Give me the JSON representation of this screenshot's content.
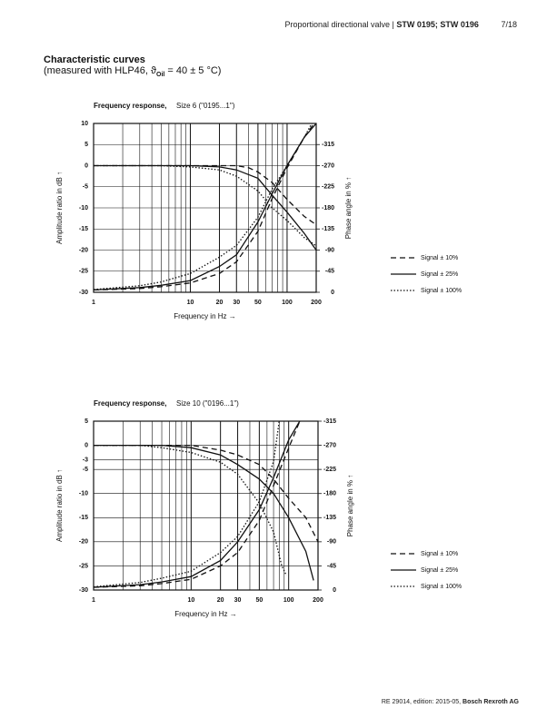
{
  "header": {
    "title": "Proportional directional valve |",
    "models": "STW 0195; STW 0196",
    "page": "7/18"
  },
  "section": {
    "title": "Characteristic curves",
    "subtitle_pre": "(measured with HLP46, ϑ",
    "subscript": "Oil",
    "subtitle_post": "= 40 ± 5 °C)"
  },
  "footer": {
    "text": "RE 29014, edition: 2015-05,",
    "company": "Bosch Rexroth AG"
  },
  "chart_data": [
    {
      "type": "line",
      "title": "Frequency response,",
      "subtitle": "Size 6 (\"0195...1\")",
      "xlabel": "Frequency in Hz →",
      "ylabel": "Amplitude ratio in dB ↑",
      "y2label": "Phase angle in % ↑",
      "xscale": "log",
      "xlim": [
        1,
        200
      ],
      "xticks": [
        1,
        10,
        20,
        30,
        50,
        100,
        200
      ],
      "xminor": [
        2,
        3,
        4,
        5,
        6,
        7,
        8,
        9,
        40,
        60,
        70,
        80,
        90
      ],
      "ylim": [
        -30,
        10
      ],
      "yticks": [
        10,
        5,
        0,
        -5,
        -10,
        -15,
        -20,
        -25,
        -30
      ],
      "y2lim": [
        0,
        -360
      ],
      "y2ticks": [
        -315,
        -270,
        -225,
        -180,
        -135,
        -90,
        -45,
        0
      ],
      "grid": true,
      "series": [
        {
          "name": "Signal ± 10%",
          "dash": "dashed",
          "color": "#111",
          "x": [
            1,
            10,
            30,
            40,
            50,
            70,
            100,
            150,
            200
          ],
          "values": [
            0,
            0,
            0,
            -0.5,
            -1.5,
            -4,
            -8,
            -12,
            -14
          ]
        },
        {
          "name": "Signal ± 25%",
          "dash": "solid",
          "color": "#111",
          "x": [
            1,
            10,
            20,
            30,
            50,
            70,
            100,
            150,
            200
          ],
          "values": [
            0,
            0,
            -0.3,
            -1,
            -3,
            -7,
            -11,
            -16,
            -20
          ]
        },
        {
          "name": "Signal ± 100%",
          "dash": "dotted",
          "color": "#111",
          "x": [
            1,
            5,
            10,
            20,
            30,
            50,
            70,
            100,
            150,
            200
          ],
          "values": [
            0,
            0,
            -0.3,
            -1,
            -2.5,
            -6,
            -10,
            -13,
            -17,
            -19
          ]
        },
        {
          "axis": "y2",
          "dash": "dashed",
          "color": "#111",
          "x": [
            1,
            3,
            5,
            10,
            20,
            30,
            50,
            70,
            100,
            150,
            190
          ],
          "values": [
            -5,
            -8,
            -12,
            -20,
            -40,
            -65,
            -130,
            -200,
            -265,
            -330,
            -360
          ]
        },
        {
          "axis": "y2",
          "dash": "solid",
          "color": "#111",
          "x": [
            1,
            3,
            5,
            10,
            20,
            30,
            50,
            70,
            100,
            150,
            200
          ],
          "values": [
            -5,
            -10,
            -15,
            -25,
            -55,
            -80,
            -150,
            -210,
            -270,
            -330,
            -360
          ]
        },
        {
          "axis": "y2",
          "dash": "dotted",
          "color": "#111",
          "x": [
            1,
            3,
            5,
            10,
            20,
            30,
            50,
            70,
            100,
            150,
            180
          ],
          "values": [
            -6,
            -14,
            -22,
            -40,
            -75,
            -100,
            -160,
            -220,
            -270,
            -330,
            -360
          ]
        }
      ]
    },
    {
      "type": "line",
      "title": "Frequency response,",
      "subtitle": "Size 10 (\"0196...1\")",
      "xlabel": "Frequency in Hz →",
      "ylabel": "Amplitude ratio in dB ↑",
      "y2label": "Phase angle in % ↑",
      "xscale": "log",
      "xlim": [
        1,
        200
      ],
      "xticks": [
        1,
        10,
        20,
        30,
        50,
        100,
        200
      ],
      "xminor": [
        2,
        3,
        4,
        5,
        6,
        7,
        8,
        9,
        40,
        60,
        70,
        80,
        90
      ],
      "ylim": [
        -30,
        5
      ],
      "yticks": [
        5,
        0,
        -3,
        -5,
        -10,
        -15,
        -20,
        -25,
        -30
      ],
      "y2lim": [
        0,
        -315
      ],
      "y2ticks": [
        -315,
        -270,
        -225,
        -180,
        -135,
        -90,
        -45,
        0
      ],
      "grid": true,
      "series": [
        {
          "name": "Signal ± 10%",
          "dash": "dashed",
          "color": "#111",
          "x": [
            1,
            10,
            20,
            30,
            50,
            70,
            100,
            150,
            200
          ],
          "values": [
            0,
            0,
            -1,
            -2,
            -4,
            -7,
            -11,
            -15,
            -20
          ]
        },
        {
          "name": "Signal ± 25%",
          "dash": "solid",
          "color": "#111",
          "x": [
            1,
            5,
            10,
            20,
            30,
            50,
            70,
            100,
            150,
            180
          ],
          "values": [
            0,
            0,
            -0.5,
            -2,
            -4,
            -7,
            -10,
            -15,
            -22,
            -28
          ]
        },
        {
          "name": "Signal ± 100%",
          "dash": "dotted",
          "color": "#111",
          "x": [
            1,
            3,
            5,
            10,
            20,
            30,
            50,
            70,
            85,
            95
          ],
          "values": [
            0,
            0,
            -0.5,
            -1.5,
            -3.5,
            -6,
            -12,
            -18,
            -25,
            -27
          ]
        },
        {
          "axis": "y2",
          "dash": "dashed",
          "color": "#111",
          "x": [
            1,
            3,
            5,
            10,
            20,
            30,
            50,
            70,
            100,
            130
          ],
          "values": [
            -5,
            -8,
            -12,
            -20,
            -45,
            -70,
            -130,
            -195,
            -265,
            -315
          ]
        },
        {
          "axis": "y2",
          "dash": "solid",
          "color": "#111",
          "x": [
            1,
            3,
            5,
            10,
            20,
            30,
            50,
            70,
            100,
            130
          ],
          "values": [
            -5,
            -10,
            -15,
            -25,
            -55,
            -90,
            -150,
            -210,
            -280,
            -315
          ]
        },
        {
          "axis": "y2",
          "dash": "dotted",
          "color": "#111",
          "x": [
            1,
            3,
            5,
            10,
            20,
            30,
            50,
            70,
            80
          ],
          "values": [
            -6,
            -14,
            -22,
            -35,
            -70,
            -100,
            -165,
            -240,
            -315
          ]
        }
      ]
    }
  ]
}
